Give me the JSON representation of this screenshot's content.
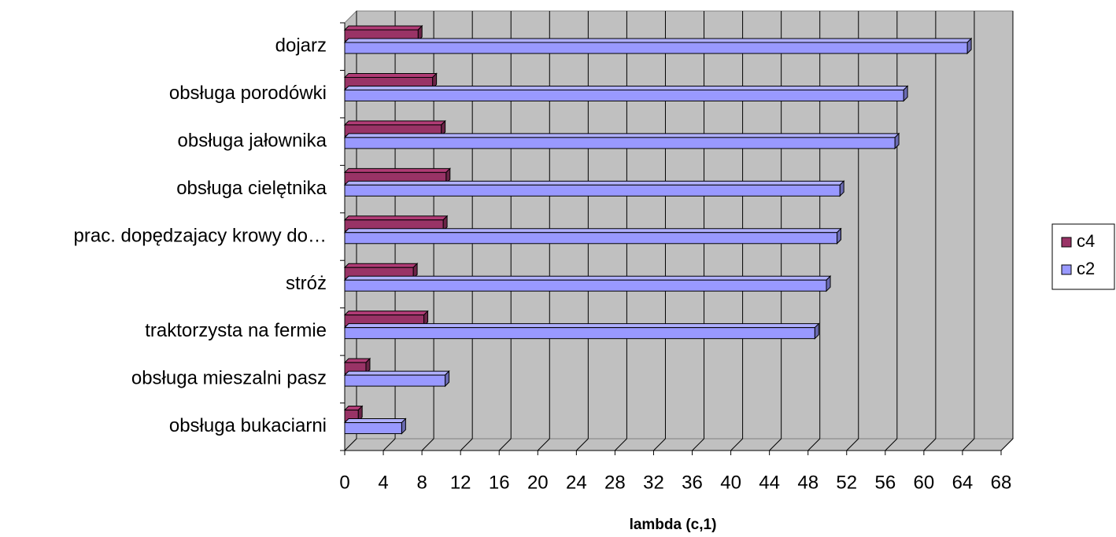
{
  "chart_data": {
    "type": "bar3d_horizontal",
    "categories": [
      "dojarz",
      "obsługa porodówki",
      "obsługa jałownika",
      "obsługa cielętnika",
      "prac. dopędzajacy krowy do…",
      "stróż",
      "traktorzysta na fermie",
      "obsługa mieszalni pasz",
      "obsługa bukaciarni"
    ],
    "series": [
      {
        "name": "c4",
        "color": "#993366",
        "values": [
          7.6,
          9.1,
          10.0,
          10.5,
          10.2,
          7.1,
          8.2,
          2.2,
          1.4
        ]
      },
      {
        "name": "c2",
        "color": "#9999ff",
        "values": [
          64.5,
          57.9,
          57.0,
          51.3,
          51.0,
          49.9,
          48.7,
          10.4,
          5.9
        ]
      }
    ],
    "xlabel": "lambda (c,1)",
    "xlim": [
      0,
      68
    ],
    "xticks": [
      0,
      4,
      8,
      12,
      16,
      20,
      24,
      28,
      32,
      36,
      40,
      44,
      48,
      52,
      56,
      60,
      64,
      68
    ],
    "grid": true,
    "legend": "right"
  }
}
